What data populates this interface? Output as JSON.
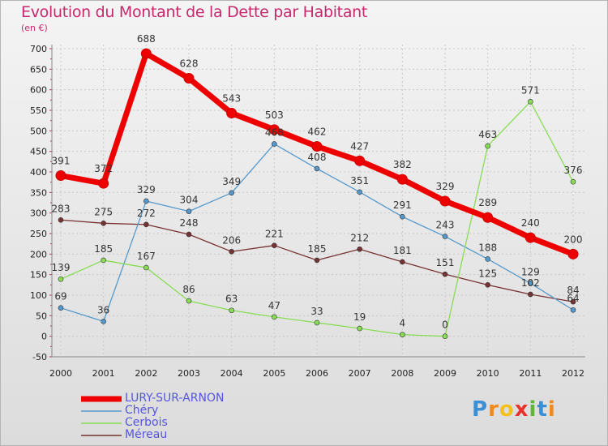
{
  "title": "Evolution du Montant de la Dette par Habitant",
  "subtitle": "(en €)",
  "logo": "Proxiti",
  "chart_data": {
    "type": "line",
    "title": "Evolution du Montant de la Dette par Habitant",
    "ylabel": "(en €)",
    "ylim": [
      -50,
      700
    ],
    "yticks": [
      "700",
      "650",
      "600",
      "550",
      "500",
      "450",
      "400",
      "350",
      "300",
      "250",
      "200",
      "150",
      "100",
      "50",
      "0",
      "-50"
    ],
    "x": [
      "2000",
      "2001",
      "2002",
      "2003",
      "2004",
      "2005",
      "2006",
      "2007",
      "2008",
      "2009",
      "2010",
      "2011",
      "2012"
    ],
    "grid": true,
    "legend": "bottom-left",
    "series": [
      {
        "name": "LURY-SUR-ARNON",
        "color": "#ee0000",
        "values": [
          391,
          372,
          688,
          628,
          543,
          503,
          462,
          427,
          382,
          329,
          289,
          240,
          200
        ]
      },
      {
        "name": "Chéry",
        "color": "#5599cc",
        "values": [
          69,
          36,
          329,
          304,
          349,
          468,
          408,
          351,
          291,
          243,
          188,
          129,
          64
        ]
      },
      {
        "name": "Cerbois",
        "color": "#88dd55",
        "values": [
          139,
          185,
          167,
          86,
          63,
          47,
          33,
          19,
          4,
          0,
          463,
          571,
          376
        ]
      },
      {
        "name": "Méreau",
        "color": "#773333",
        "values": [
          283,
          275,
          272,
          248,
          206,
          221,
          185,
          212,
          181,
          151,
          125,
          102,
          84
        ]
      }
    ]
  }
}
